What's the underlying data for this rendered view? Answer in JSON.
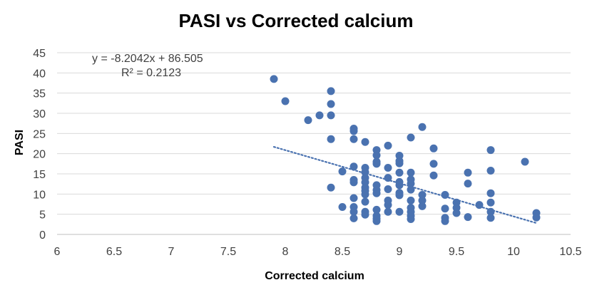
{
  "chart_data": {
    "type": "scatter",
    "title": "PASI vs Corrected calcium",
    "xlabel": "Corrected calcium",
    "ylabel": "PASI",
    "xlim": [
      6,
      10.5
    ],
    "ylim": [
      0,
      45
    ],
    "x_ticks": [
      "6",
      "6.5",
      "7",
      "7.5",
      "8",
      "8.5",
      "9",
      "9.5",
      "10",
      "10.5"
    ],
    "y_ticks": [
      "0",
      "5",
      "10",
      "15",
      "20",
      "25",
      "30",
      "35",
      "40",
      "45"
    ],
    "grid": "horizontal",
    "legend": "none",
    "colors": {
      "point": "#4a72b0",
      "trendline": "#4a72b0",
      "grid": "#d9d9d9"
    },
    "trendline": {
      "type": "linear",
      "style": "dotted",
      "slope": -8.2042,
      "intercept": 86.505,
      "x_range": [
        7.9,
        10.2
      ],
      "equation_label": "y = -8.2042x + 86.505",
      "r2_label": "R² = 0.2123"
    },
    "series": [
      {
        "points": [
          [
            7.9,
            38.5
          ],
          [
            8.0,
            33
          ],
          [
            8.2,
            28.3
          ],
          [
            8.3,
            29.5
          ],
          [
            8.4,
            35.5
          ],
          [
            8.4,
            32.3
          ],
          [
            8.4,
            29.5
          ],
          [
            8.4,
            23.6
          ],
          [
            8.4,
            11.6
          ],
          [
            8.5,
            15.6
          ],
          [
            8.5,
            6.8
          ],
          [
            8.6,
            26.2
          ],
          [
            8.6,
            25.6
          ],
          [
            8.6,
            23.6
          ],
          [
            8.6,
            16.8
          ],
          [
            8.6,
            13.5
          ],
          [
            8.6,
            12.9
          ],
          [
            8.6,
            9.0
          ],
          [
            8.6,
            6.8
          ],
          [
            8.6,
            5.6
          ],
          [
            8.6,
            4.0
          ],
          [
            8.7,
            22.9
          ],
          [
            8.7,
            16.5
          ],
          [
            8.7,
            15.4
          ],
          [
            8.7,
            14.0
          ],
          [
            8.7,
            12.9
          ],
          [
            8.7,
            11.6
          ],
          [
            8.7,
            10.8
          ],
          [
            8.7,
            9.9
          ],
          [
            8.7,
            8.1
          ],
          [
            8.7,
            5.6
          ],
          [
            8.7,
            4.9
          ],
          [
            8.8,
            20.9
          ],
          [
            8.8,
            19.6
          ],
          [
            8.8,
            18.0
          ],
          [
            8.8,
            17.5
          ],
          [
            8.8,
            12.2
          ],
          [
            8.8,
            11.0
          ],
          [
            8.8,
            10.2
          ],
          [
            8.8,
            6.1
          ],
          [
            8.8,
            4.6
          ],
          [
            8.8,
            3.9
          ],
          [
            8.8,
            3.3
          ],
          [
            8.9,
            22.0
          ],
          [
            8.9,
            16.5
          ],
          [
            8.9,
            14.0
          ],
          [
            8.9,
            11.2
          ],
          [
            8.9,
            8.4
          ],
          [
            8.9,
            7.3
          ],
          [
            8.9,
            5.6
          ],
          [
            9.0,
            19.5
          ],
          [
            9.0,
            18.2
          ],
          [
            9.0,
            17.6
          ],
          [
            9.0,
            15.3
          ],
          [
            9.0,
            13.0
          ],
          [
            9.0,
            12.2
          ],
          [
            9.0,
            10.3
          ],
          [
            9.0,
            9.7
          ],
          [
            9.0,
            5.6
          ],
          [
            9.1,
            24.0
          ],
          [
            9.1,
            15.3
          ],
          [
            9.1,
            13.6
          ],
          [
            9.1,
            12.6
          ],
          [
            9.1,
            11.1
          ],
          [
            9.1,
            8.4
          ],
          [
            9.1,
            6.6
          ],
          [
            9.1,
            5.6
          ],
          [
            9.1,
            4.6
          ],
          [
            9.1,
            3.8
          ],
          [
            9.2,
            26.6
          ],
          [
            9.2,
            9.8
          ],
          [
            9.2,
            8.4
          ],
          [
            9.2,
            7.0
          ],
          [
            9.3,
            21.3
          ],
          [
            9.3,
            17.5
          ],
          [
            9.3,
            14.6
          ],
          [
            9.4,
            9.8
          ],
          [
            9.4,
            6.4
          ],
          [
            9.4,
            4.1
          ],
          [
            9.4,
            3.3
          ],
          [
            9.5,
            7.9
          ],
          [
            9.5,
            6.6
          ],
          [
            9.5,
            5.3
          ],
          [
            9.6,
            15.3
          ],
          [
            9.6,
            12.6
          ],
          [
            9.6,
            4.3
          ],
          [
            9.7,
            7.3
          ],
          [
            9.8,
            20.9
          ],
          [
            9.8,
            15.8
          ],
          [
            9.8,
            10.2
          ],
          [
            9.8,
            7.9
          ],
          [
            9.8,
            5.6
          ],
          [
            9.8,
            4.1
          ],
          [
            10.1,
            18.0
          ],
          [
            10.2,
            5.3
          ],
          [
            10.2,
            4.2
          ]
        ]
      }
    ]
  }
}
